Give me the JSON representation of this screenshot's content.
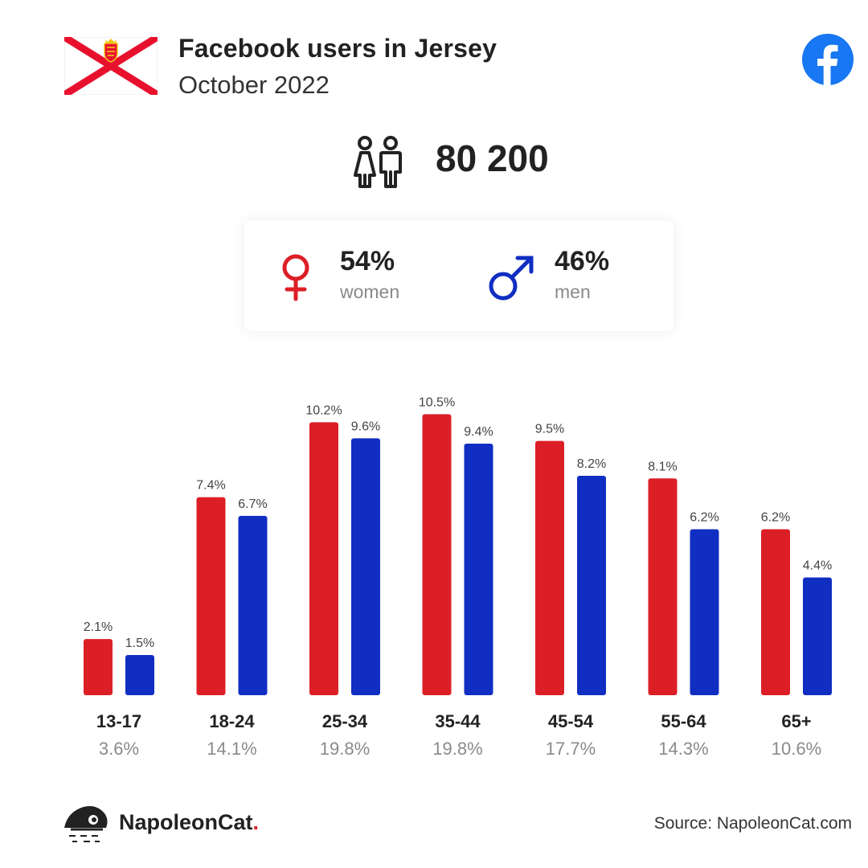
{
  "header": {
    "title": "Facebook users in Jersey",
    "subtitle": "October 2022",
    "flag_icon": "jersey-flag-icon",
    "platform_icon": "facebook-logo-icon"
  },
  "summary": {
    "total_users": "80 200",
    "people_icon": "women-men-icon",
    "women_pct": "54%",
    "women_label": "women",
    "men_pct": "46%",
    "men_label": "men"
  },
  "colors": {
    "women": "#dc1f26",
    "men": "#112ec2",
    "facebook": "#1877f2",
    "brand_dot": "#dc1f26"
  },
  "chart_data": {
    "type": "bar",
    "categories": [
      "13-17",
      "18-24",
      "25-34",
      "35-44",
      "45-54",
      "55-64",
      "65+"
    ],
    "category_totals": [
      "3.6%",
      "14.1%",
      "19.8%",
      "19.8%",
      "17.7%",
      "14.3%",
      "10.6%"
    ],
    "series": [
      {
        "values": [
          2.1,
          7.4,
          10.2,
          10.5,
          9.5,
          8.1,
          6.2
        ],
        "labels": [
          "2.1%",
          "7.4%",
          "10.2%",
          "10.5%",
          "9.5%",
          "8.1%",
          "6.2%"
        ],
        "color": "#dc1f26"
      },
      {
        "values": [
          1.5,
          6.7,
          9.6,
          9.4,
          8.2,
          6.2,
          4.4
        ],
        "labels": [
          "1.5%",
          "6.7%",
          "9.6%",
          "9.4%",
          "8.2%",
          "6.2%",
          "4.4%"
        ],
        "color": "#112ec2"
      }
    ],
    "title": "",
    "xlabel": "",
    "ylabel": "",
    "grid": false,
    "legend": "none"
  },
  "footer": {
    "brand_name": "NapoleonCat",
    "brand_dot": ".",
    "brand_icon": "napoleoncat-logo-icon",
    "source": "Source: NapoleonCat.com"
  }
}
